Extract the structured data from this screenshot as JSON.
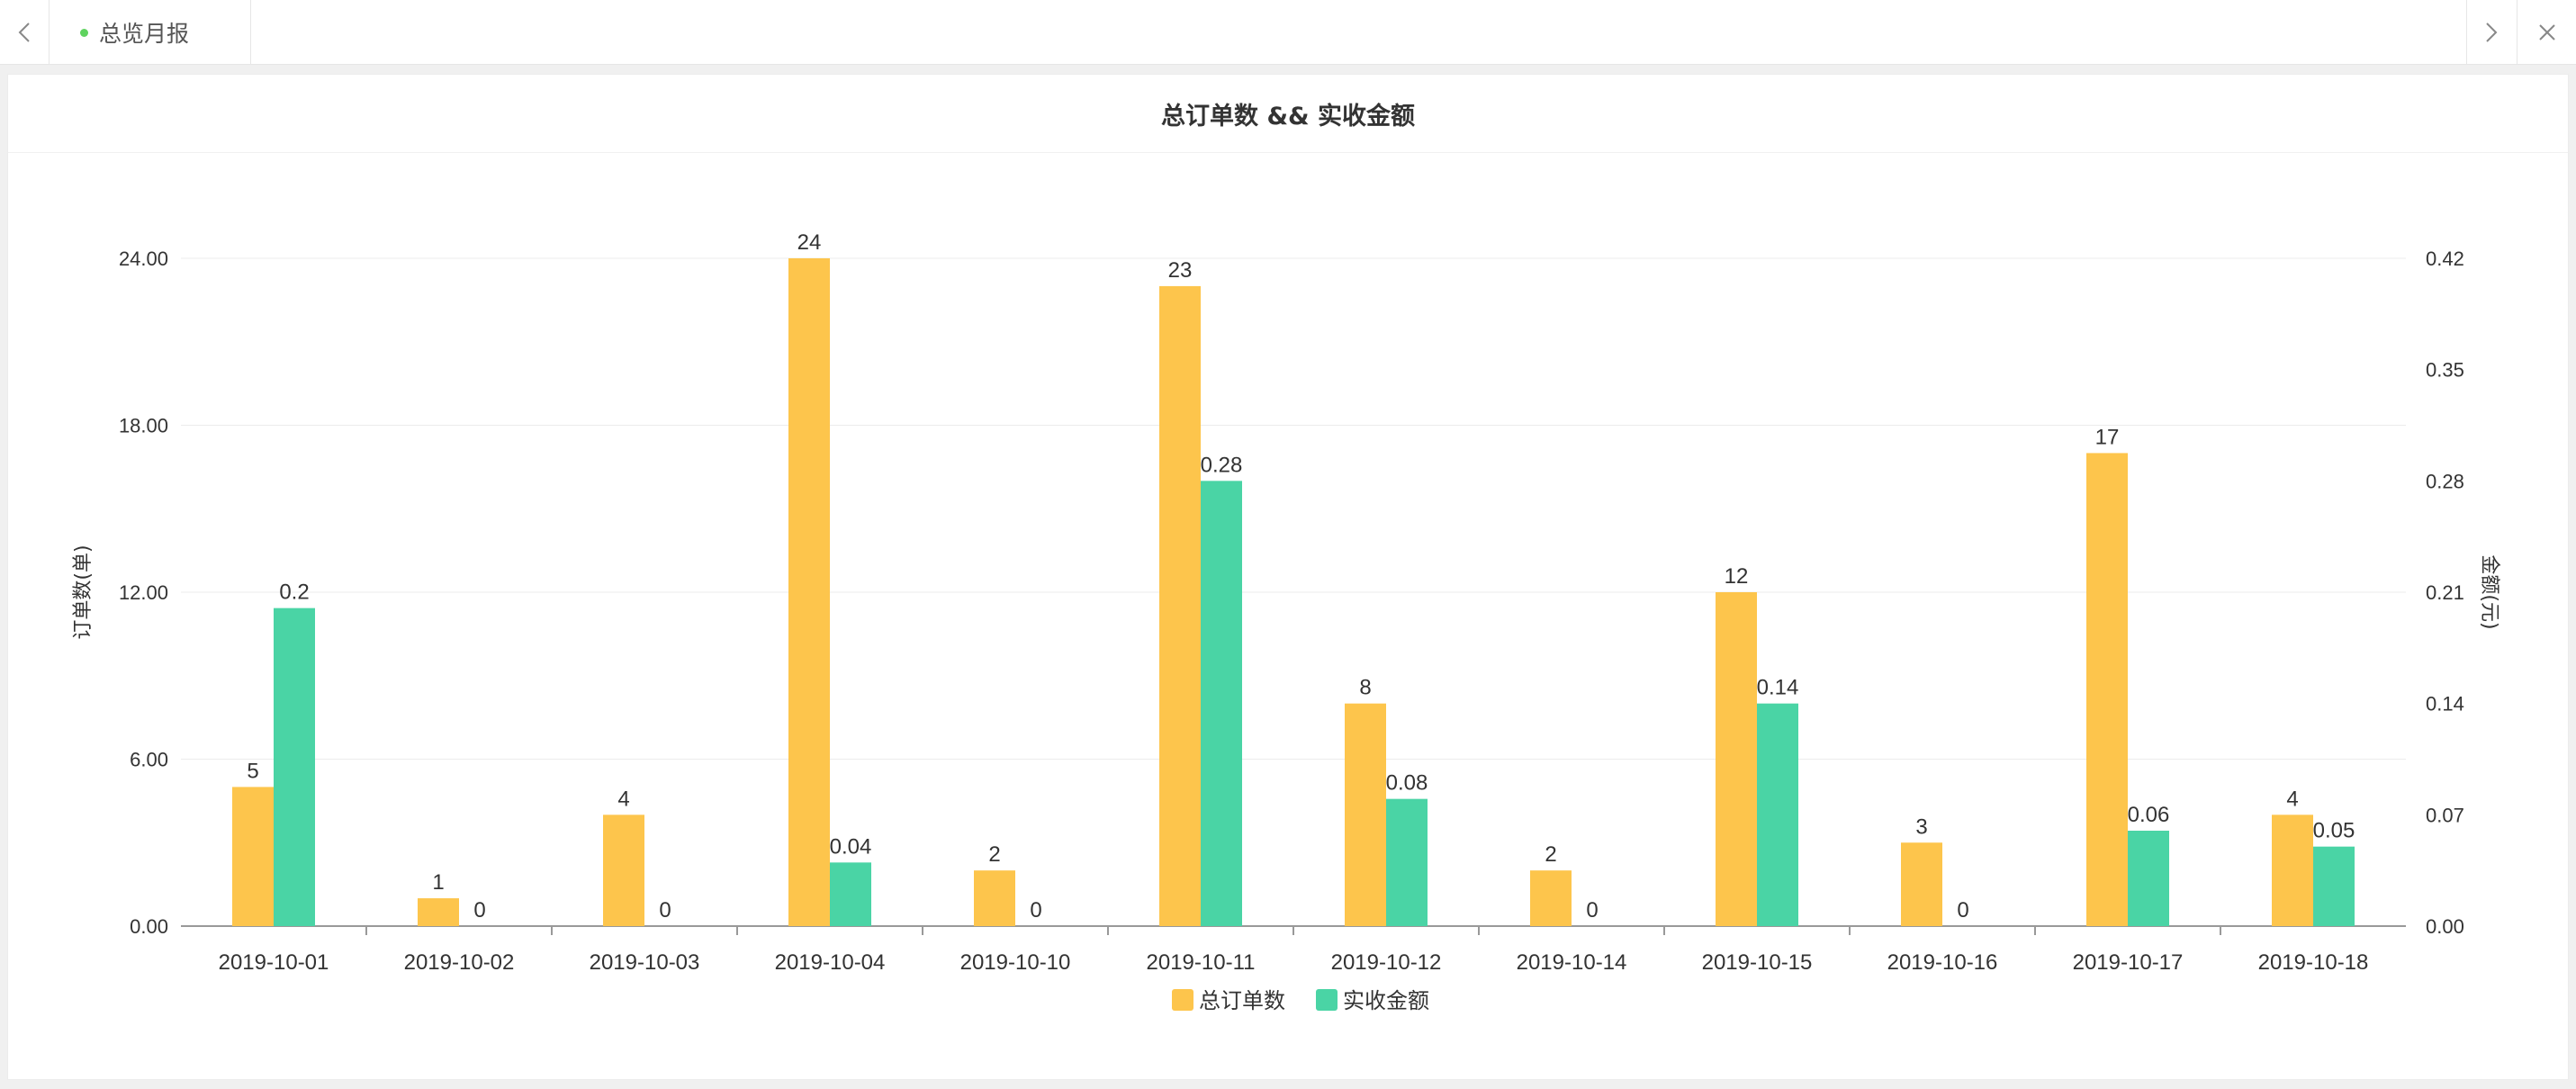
{
  "tabbar": {
    "prev_icon": "chevron-left-icon",
    "next_icon": "chevron-right-icon",
    "close_icon": "close-icon",
    "active_tab": {
      "label": "总览月报",
      "dot_color": "#5fd35f"
    }
  },
  "panel": {
    "title": "总订单数 && 实收金额"
  },
  "chart_data": {
    "type": "bar",
    "title": "总订单数 && 实收金额",
    "categories": [
      "2019-10-01",
      "2019-10-02",
      "2019-10-03",
      "2019-10-04",
      "2019-10-10",
      "2019-10-11",
      "2019-10-12",
      "2019-10-14",
      "2019-10-15",
      "2019-10-16",
      "2019-10-17",
      "2019-10-18"
    ],
    "series": [
      {
        "name": "总订单数",
        "axis": "left",
        "color": "#fdc54c",
        "values": [
          5,
          1,
          4,
          24,
          2,
          23,
          8,
          2,
          12,
          3,
          17,
          4
        ],
        "labels": [
          "5",
          "1",
          "4",
          "24",
          "2",
          "23",
          "8",
          "2",
          "12",
          "3",
          "17",
          "4"
        ]
      },
      {
        "name": "实收金额",
        "axis": "right",
        "color": "#4ad4a5",
        "values": [
          0.2,
          0,
          0,
          0.04,
          0,
          0.28,
          0.08,
          0,
          0.14,
          0,
          0.06,
          0.05
        ],
        "labels": [
          "0.2",
          "0",
          "0",
          "0.04",
          "0",
          "0.28",
          "0.08",
          "0",
          "0.14",
          "0",
          "0.06",
          "0.05"
        ]
      }
    ],
    "y_left": {
      "label": "订单数(单)",
      "ylim": [
        0,
        24
      ],
      "ticks": [
        "0.00",
        "6.00",
        "12.00",
        "18.00",
        "24.00"
      ]
    },
    "y_right": {
      "label": "金额(元)",
      "ylim": [
        0,
        0.42
      ],
      "ticks": [
        "0.00",
        "0.07",
        "0.14",
        "0.21",
        "0.28",
        "0.35",
        "0.42"
      ]
    },
    "grid": true,
    "legend": "bottom-center"
  }
}
